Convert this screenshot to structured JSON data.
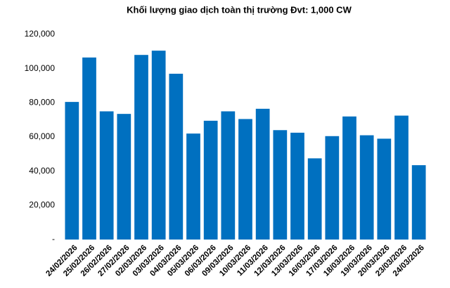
{
  "chart_data": {
    "type": "bar",
    "title": "Khối lượng giao dịch toàn thị trường Đvt: 1,000 CW",
    "categories": [
      "24/02/2026",
      "25/02/2026",
      "26/02/2026",
      "27/02/2026",
      "02/03/2026",
      "03/03/2026",
      "04/03/2026",
      "05/03/2026",
      "06/03/2026",
      "09/03/2026",
      "10/03/2026",
      "11/03/2026",
      "12/03/2026",
      "13/03/2026",
      "16/03/2026",
      "17/03/2026",
      "18/03/2026",
      "19/03/2026",
      "20/03/2026",
      "23/03/2026",
      "24/03/2026"
    ],
    "values": [
      80500,
      106500,
      75000,
      73500,
      108000,
      110500,
      97000,
      62000,
      69500,
      75000,
      70500,
      76500,
      64000,
      62500,
      47500,
      60500,
      72000,
      61000,
      59000,
      72500,
      43500
    ],
    "color": "#0070c0",
    "ylim": [
      0,
      120000
    ],
    "yticks": [
      {
        "value": 0,
        "label": "-"
      },
      {
        "value": 20000,
        "label": "20,000"
      },
      {
        "value": 40000,
        "label": "40,000"
      },
      {
        "value": 60000,
        "label": "60,000"
      },
      {
        "value": 80000,
        "label": "80,000"
      },
      {
        "value": 100000,
        "label": "100,000"
      },
      {
        "value": 120000,
        "label": "120,000"
      }
    ],
    "grid": false
  }
}
